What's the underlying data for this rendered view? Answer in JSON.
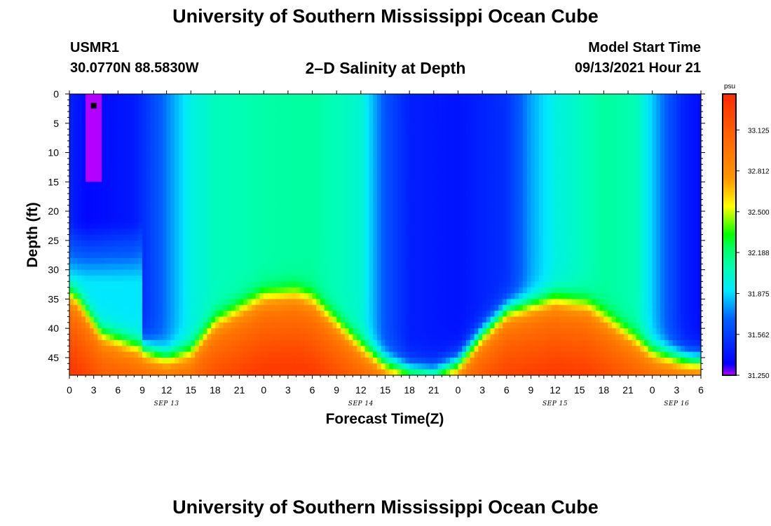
{
  "header": {
    "title_top": "University of Southern Mississippi Ocean Cube",
    "title_bottom": "University of Southern Mississippi Ocean Cube",
    "station": "USMR1",
    "coords": "30.0770N  88.5830W",
    "plot_title": "2–D Salinity at Depth",
    "start_label": "Model Start Time",
    "start_time": "09/13/2021 Hour 21"
  },
  "chart_data": {
    "type": "heatmap",
    "title": "2–D Salinity at Depth",
    "xlabel": "Forecast Time(Z)",
    "ylabel": "Depth (ft)",
    "x_range_hours": [
      0,
      78
    ],
    "y_range": [
      0,
      48
    ],
    "x_ticks": [
      "0",
      "3",
      "6",
      "9",
      "12",
      "15",
      "18",
      "21",
      "0",
      "3",
      "6",
      "9",
      "12",
      "15",
      "18",
      "21",
      "0",
      "3",
      "6",
      "9",
      "12",
      "15",
      "18",
      "21",
      "0",
      "3",
      "6"
    ],
    "date_labels": [
      "SEP 13",
      "SEP 14",
      "SEP 15",
      "SEP 16"
    ],
    "y_ticks": [
      0,
      5,
      10,
      15,
      20,
      25,
      30,
      35,
      40,
      45
    ],
    "colorbar": {
      "unit": "psu",
      "min": 31.25,
      "max": 33.4,
      "ticks": [
        "31.250",
        "31.562",
        "31.875",
        "32.188",
        "32.500",
        "32.812",
        "33.125"
      ]
    },
    "marker": {
      "x": 3,
      "y": 2
    }
  },
  "colors": {
    "scale": [
      "#b400ff",
      "#0000ff",
      "#0060ff",
      "#00e8ff",
      "#00ffb4",
      "#00ff64",
      "#00ff00",
      "#ffff00",
      "#ff9600",
      "#ff6400",
      "#ff2800"
    ]
  }
}
